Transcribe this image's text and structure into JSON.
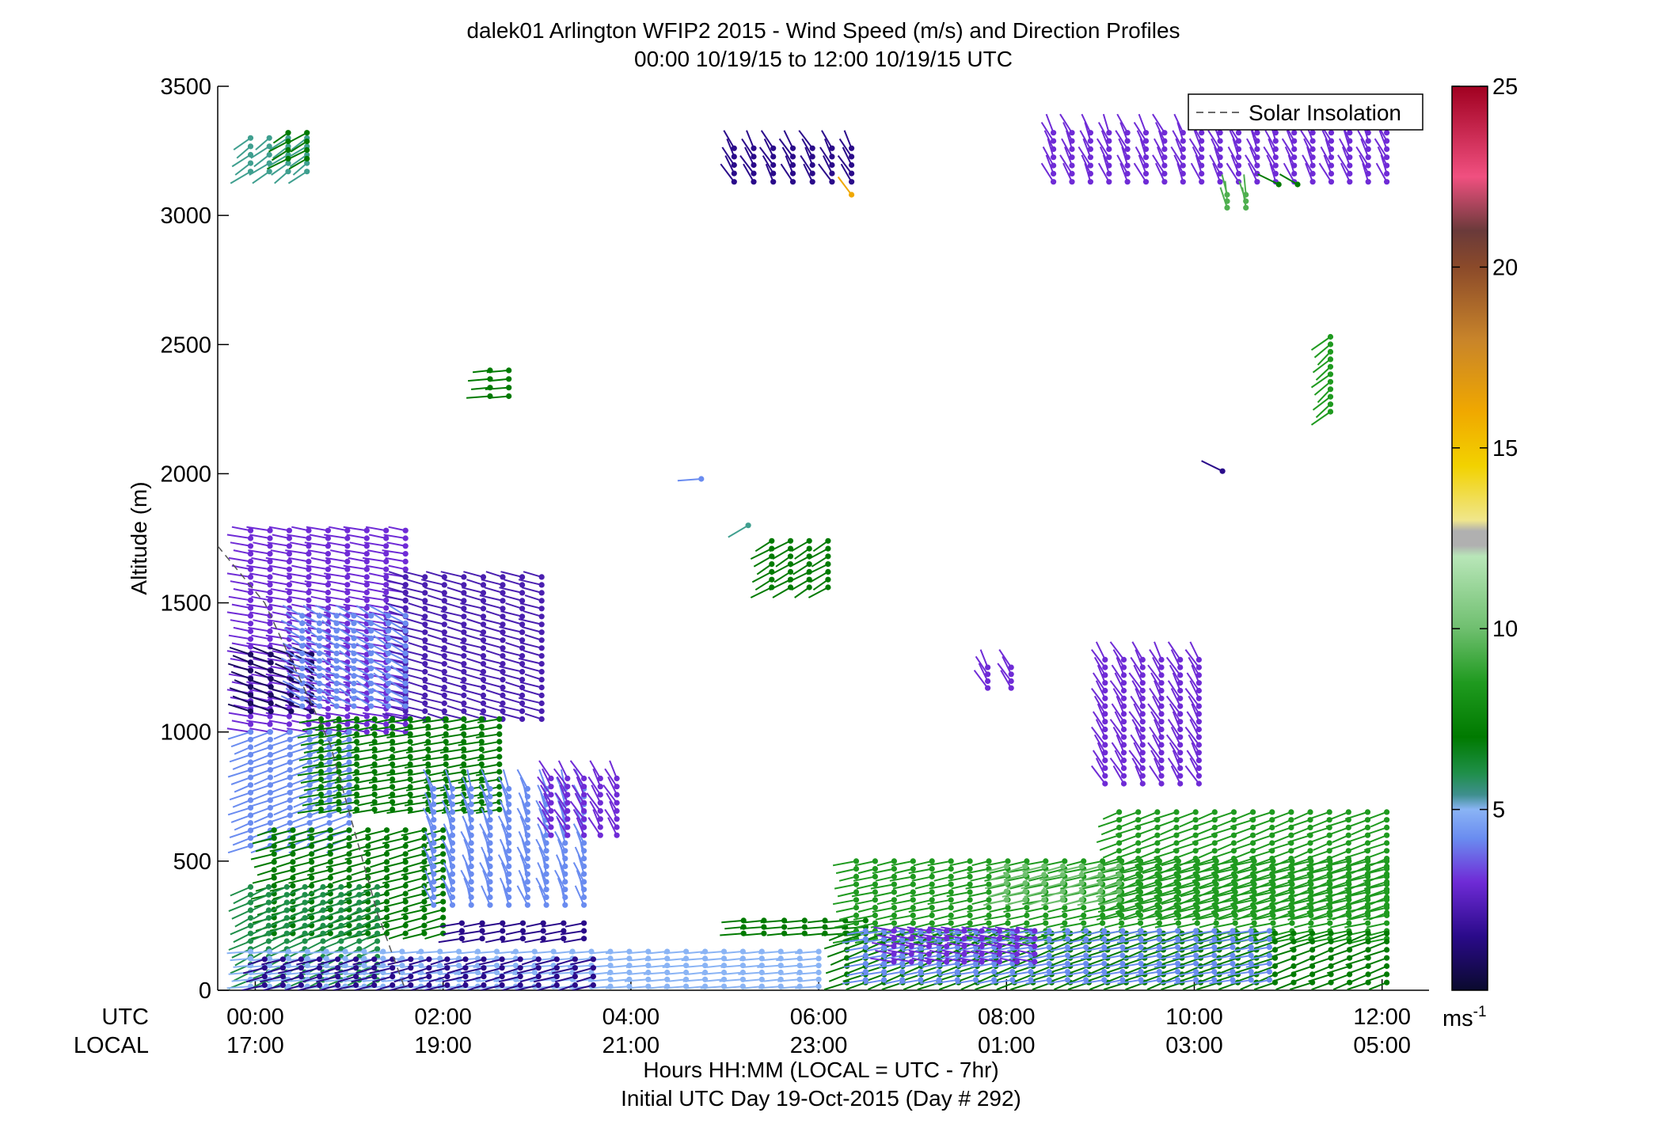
{
  "chart_data": {
    "type": "wind-barb-profile",
    "title": "dalek01 Arlington WFIP2 2015 - Wind Speed (m/s) and Direction Profiles",
    "subtitle": "00:00 10/19/15 to 12:00 10/19/15  UTC",
    "ylabel": "Altitude (m)",
    "ylim": [
      0,
      3500
    ],
    "yticks": [
      "0",
      "500",
      "1000",
      "1500",
      "2000",
      "2500",
      "3000",
      "3500"
    ],
    "xlim_hours": [
      -0.4,
      12.5
    ],
    "xrow_labels": [
      "UTC",
      "LOCAL"
    ],
    "xticks_utc": [
      "00:00",
      "02:00",
      "04:00",
      "06:00",
      "08:00",
      "10:00",
      "12:00"
    ],
    "xticks_local": [
      "17:00",
      "19:00",
      "21:00",
      "23:00",
      "01:00",
      "03:00",
      "05:00"
    ],
    "xlabel": "Hours HH:MM  (LOCAL = UTC - 7hr)",
    "xlabel2": "Initial UTC Day 19-Oct-2015 (Day # 292)",
    "legend": {
      "entry": "Solar Insolation",
      "line": "dashed",
      "position": "top-right"
    },
    "solar_insolation": {
      "hours": [
        -0.4,
        0.1,
        0.8,
        1.3,
        1.6
      ],
      "altitude": [
        1720,
        1500,
        950,
        300,
        0
      ]
    },
    "colorbar": {
      "min": 0,
      "max": 25,
      "ticks": [
        "5",
        "10",
        "15",
        "20",
        "25"
      ],
      "unit_label": "ms",
      "unit_exponent": "-1",
      "stops": [
        {
          "v": 0,
          "c": "#0a0a2e"
        },
        {
          "v": 1.5,
          "c": "#2a0a8a"
        },
        {
          "v": 3,
          "c": "#6f2bd6"
        },
        {
          "v": 4.2,
          "c": "#6a8cf0"
        },
        {
          "v": 5,
          "c": "#8ab4f5"
        },
        {
          "v": 5.4,
          "c": "#3f8f8f"
        },
        {
          "v": 6,
          "c": "#1f8f4a"
        },
        {
          "v": 7,
          "c": "#007a00"
        },
        {
          "v": 8.5,
          "c": "#1f9a1f"
        },
        {
          "v": 10,
          "c": "#6fbf6f"
        },
        {
          "v": 12,
          "c": "#b8e6b8"
        },
        {
          "v": 12.3,
          "c": "#b0b0b0"
        },
        {
          "v": 12.7,
          "c": "#b0b0b0"
        },
        {
          "v": 13,
          "c": "#f0e68c"
        },
        {
          "v": 14.5,
          "c": "#f2d200"
        },
        {
          "v": 16,
          "c": "#f0a800"
        },
        {
          "v": 18,
          "c": "#c8842a"
        },
        {
          "v": 20,
          "c": "#8b4a2a"
        },
        {
          "v": 21,
          "c": "#6a3a3a"
        },
        {
          "v": 22.5,
          "c": "#f05080"
        },
        {
          "v": 25,
          "c": "#a00020"
        }
      ]
    },
    "barb_groups": [
      {
        "h0": -0.05,
        "h1": 0.55,
        "a0": 3170,
        "a1": 3300,
        "color": "#3f9f8f",
        "dir": 235
      },
      {
        "h0": 0.35,
        "h1": 0.55,
        "a0": 3220,
        "a1": 3320,
        "color": "#007a00",
        "dir": 240
      },
      {
        "h0": 2.5,
        "h1": 2.7,
        "a0": 2300,
        "a1": 2400,
        "color": "#007a00",
        "dir": 265
      },
      {
        "h0": 4.75,
        "h1": 4.75,
        "a0": 1980,
        "a1": 1980,
        "color": "#6a8cf0",
        "dir": 265
      },
      {
        "h0": 5.25,
        "h1": 5.25,
        "a0": 1800,
        "a1": 1800,
        "color": "#3f9f8f",
        "dir": 235
      },
      {
        "h0": 5.5,
        "h1": 6.1,
        "a0": 1560,
        "a1": 1740,
        "color": "#007a00",
        "dir": 240
      },
      {
        "h0": 5.1,
        "h1": 6.35,
        "a0": 3130,
        "a1": 3260,
        "color": "#2a0a8a",
        "dir": 330
      },
      {
        "h0": 6.35,
        "h1": 6.35,
        "a0": 3080,
        "a1": 3080,
        "color": "#f0a800",
        "dir": 330
      },
      {
        "h0": 7.8,
        "h1": 8.05,
        "a0": 1170,
        "a1": 1250,
        "color": "#6f2bd6",
        "dir": 330
      },
      {
        "h0": 9.05,
        "h1": 10.05,
        "a0": 800,
        "a1": 1280,
        "color": "#6f2bd6",
        "dir": 330
      },
      {
        "h0": 10.3,
        "h1": 10.3,
        "a0": 2010,
        "a1": 2010,
        "color": "#2a0a8a",
        "dir": 300
      },
      {
        "h0": 8.5,
        "h1": 12.05,
        "a0": 3130,
        "a1": 3320,
        "color": "#6f2bd6",
        "dir": 335
      },
      {
        "h0": 10.35,
        "h1": 10.55,
        "a0": 3030,
        "a1": 3080,
        "color": "#4faf4f",
        "dir": 350
      },
      {
        "h0": 10.9,
        "h1": 11.1,
        "a0": 3120,
        "a1": 3120,
        "color": "#007a00",
        "dir": 300
      },
      {
        "h0": 11.45,
        "h1": 11.45,
        "a0": 2240,
        "a1": 2530,
        "color": "#1f9a1f",
        "dir": 230
      },
      {
        "h0": -0.05,
        "h1": 1.6,
        "a0": 1000,
        "a1": 1780,
        "color": "#6f2bd6",
        "dir": 280
      },
      {
        "h0": 1.6,
        "h1": 3.05,
        "a0": 1050,
        "a1": 1600,
        "color": "#4a1fb0",
        "dir": 285
      },
      {
        "h0": -0.05,
        "h1": 0.6,
        "a0": 1080,
        "a1": 1300,
        "color": "#1a0a5e",
        "dir": 290
      },
      {
        "h0": 0.5,
        "h1": 1.6,
        "a0": 1100,
        "a1": 1450,
        "color": "#6a8cf0",
        "dir": 300
      },
      {
        "h0": -0.05,
        "h1": 1.0,
        "a0": 560,
        "a1": 1000,
        "color": "#6a8cf0",
        "dir": 250
      },
      {
        "h0": 0.7,
        "h1": 2.6,
        "a0": 700,
        "a1": 1050,
        "color": "#007a00",
        "dir": 260
      },
      {
        "h0": 0.2,
        "h1": 2.0,
        "a0": 220,
        "a1": 620,
        "color": "#007a00",
        "dir": 255
      },
      {
        "h0": 1.9,
        "h1": 3.5,
        "a0": 330,
        "a1": 780,
        "color": "#6a8cf0",
        "dir": 340
      },
      {
        "h0": 3.15,
        "h1": 3.85,
        "a0": 600,
        "a1": 820,
        "color": "#6f2bd6",
        "dir": 330
      },
      {
        "h0": 2.2,
        "h1": 3.5,
        "a0": 200,
        "a1": 260,
        "color": "#2a0a8a",
        "dir": 260
      },
      {
        "h0": -0.05,
        "h1": 1.3,
        "a0": 40,
        "a1": 400,
        "color": "#1f8f4a",
        "dir": 245
      },
      {
        "h0": -0.05,
        "h1": 6.0,
        "a0": 15,
        "a1": 150,
        "color": "#8ab4f5",
        "dir": 265
      },
      {
        "h0": 0.1,
        "h1": 3.6,
        "a0": 20,
        "a1": 120,
        "color": "#2a0a8a",
        "dir": 255
      },
      {
        "h0": 5.2,
        "h1": 6.5,
        "a0": 220,
        "a1": 270,
        "color": "#007a00",
        "dir": 265
      },
      {
        "h0": 6.4,
        "h1": 12.05,
        "a0": 200,
        "a1": 500,
        "color": "#1f9a1f",
        "dir": 258
      },
      {
        "h0": 9.2,
        "h1": 12.05,
        "a0": 300,
        "a1": 690,
        "color": "#1f9a1f",
        "dir": 250
      },
      {
        "h0": 8.0,
        "h1": 9.2,
        "a0": 350,
        "a1": 480,
        "color": "#6fbf6f",
        "dir": 255
      },
      {
        "h0": 6.3,
        "h1": 12.05,
        "a0": 30,
        "a1": 220,
        "color": "#007a00",
        "dir": 250
      },
      {
        "h0": 6.5,
        "h1": 10.8,
        "a0": 40,
        "a1": 230,
        "color": "#6a8cf0",
        "dir": 260
      },
      {
        "h0": 6.8,
        "h1": 8.3,
        "a0": 110,
        "a1": 230,
        "color": "#6f2bd6",
        "dir": 280
      }
    ]
  }
}
